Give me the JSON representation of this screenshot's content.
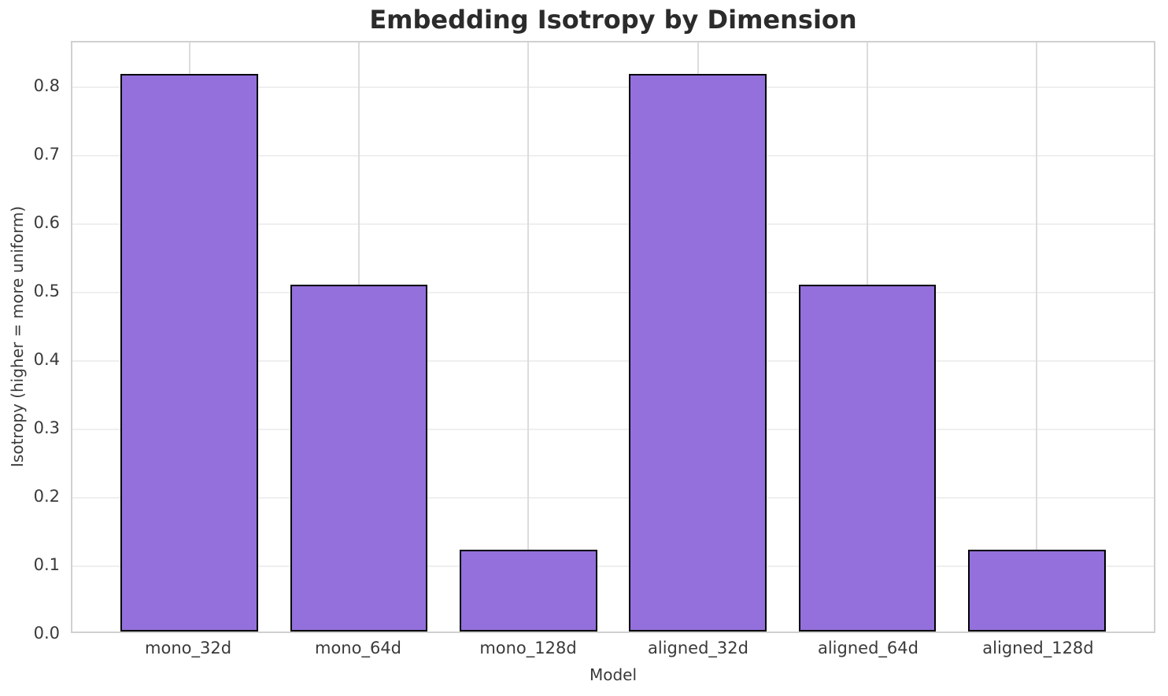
{
  "chart_data": {
    "type": "bar",
    "title": "Embedding Isotropy by Dimension",
    "xlabel": "Model",
    "ylabel": "Isotropy (higher = more uniform)",
    "categories": [
      "mono_32d",
      "mono_64d",
      "mono_128d",
      "aligned_32d",
      "aligned_64d",
      "aligned_128d"
    ],
    "values": [
      0.82,
      0.51,
      0.12,
      0.82,
      0.51,
      0.12
    ],
    "ylim": [
      0,
      0.866
    ],
    "yticks": [
      0.0,
      0.1,
      0.2,
      0.3,
      0.4,
      0.5,
      0.6,
      0.7,
      0.8
    ],
    "ytick_labels": [
      "0.0",
      "0.1",
      "0.2",
      "0.3",
      "0.4",
      "0.5",
      "0.6",
      "0.7",
      "0.8"
    ],
    "xlim": [
      -0.69,
      5.69
    ],
    "grid": true,
    "legend_position": "none",
    "bar_color": "#9370DB",
    "bar_edge_color": "#000000",
    "bar_width_ratio": 0.81
  }
}
